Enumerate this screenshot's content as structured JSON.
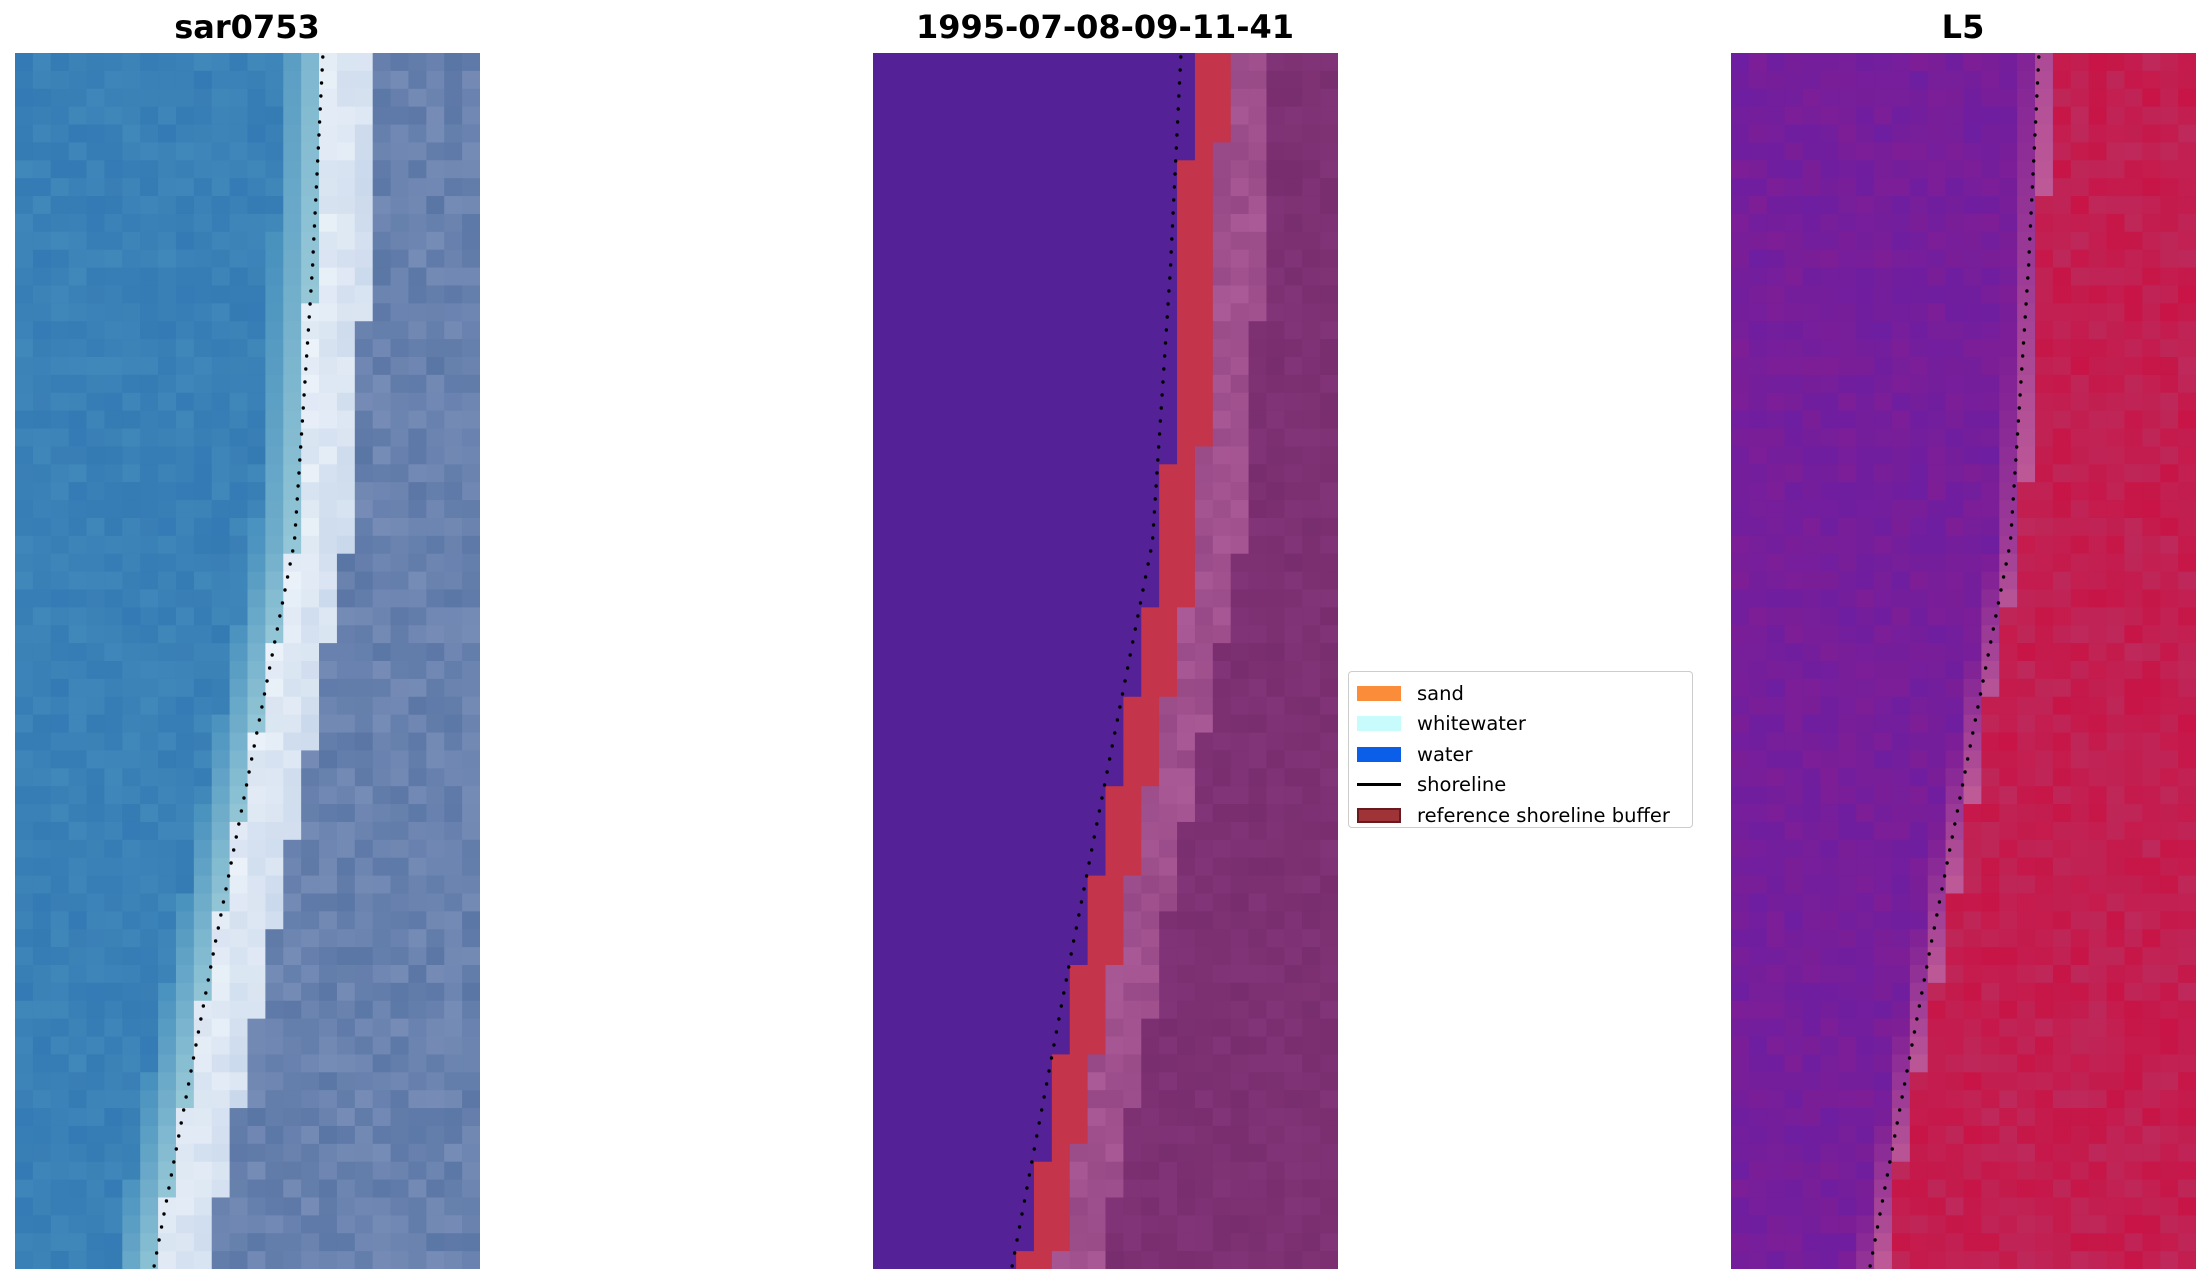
{
  "panels": [
    {
      "title": "sar0753"
    },
    {
      "title": "1995-07-08-09-11-41"
    },
    {
      "title": "L5"
    }
  ],
  "legend": {
    "items": [
      {
        "label": "sand",
        "color": "#fb8c3a"
      },
      {
        "label": "whitewater",
        "color": "#c8fcfc"
      },
      {
        "label": "water",
        "color": "#0a5ee8"
      },
      {
        "label": "shoreline",
        "color": "#000000"
      },
      {
        "label": "reference shoreline buffer",
        "color": "#9e3438"
      }
    ]
  }
}
